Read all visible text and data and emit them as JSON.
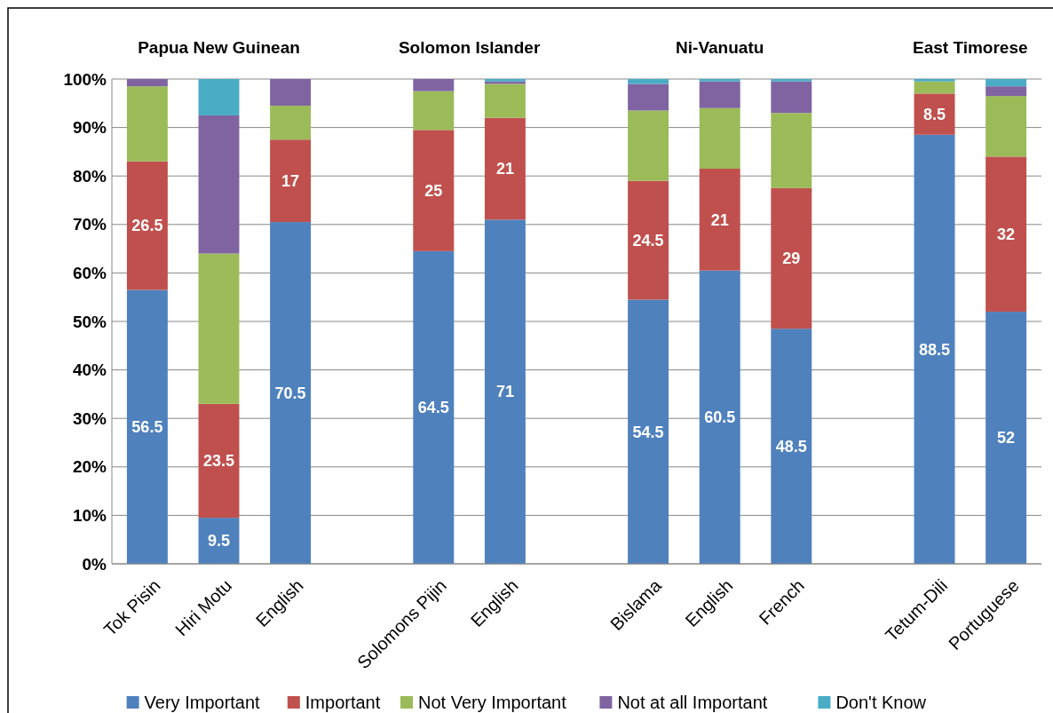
{
  "chart_data": {
    "type": "bar",
    "stacked": true,
    "categories": [
      "Tok Pisin",
      "Hiri Motu",
      "English",
      null,
      "Solomons Pijin",
      "English",
      null,
      "Bislama",
      "English",
      "French",
      null,
      "Tetum-Dili",
      "Portuguese"
    ],
    "series": [
      {
        "name": "Very Important",
        "color": "#4f81bd",
        "values": [
          56.5,
          9.5,
          70.5,
          null,
          64.5,
          71,
          null,
          54.5,
          60.5,
          48.5,
          null,
          88.5,
          52
        ],
        "value_labels": [
          "56.5",
          "9.5",
          "70.5",
          null,
          "64.5",
          "71",
          null,
          "54.5",
          "60.5",
          "48.5",
          null,
          "88.5",
          "52"
        ]
      },
      {
        "name": "Important",
        "color": "#c0504d",
        "values": [
          26.5,
          23.5,
          17,
          null,
          25,
          21,
          null,
          24.5,
          21,
          29,
          null,
          8.5,
          32
        ],
        "value_labels": [
          "26.5",
          "23.5",
          "17",
          null,
          "25",
          "21",
          null,
          "24.5",
          "21",
          "29",
          null,
          "8.5",
          "32"
        ]
      },
      {
        "name": "Not Very Important",
        "color": "#9bbb59",
        "values": [
          15.5,
          31,
          7,
          null,
          8,
          7,
          null,
          14.5,
          12.5,
          15.5,
          null,
          2.5,
          12.5
        ]
      },
      {
        "name": "Not at all Important",
        "color": "#8064a2",
        "values": [
          1.5,
          28.5,
          5.5,
          null,
          2.5,
          0.5,
          null,
          5.5,
          5.5,
          6.5,
          null,
          0,
          2
        ]
      },
      {
        "name": "Don't Know",
        "color": "#4bacc6",
        "values": [
          0,
          7.5,
          0,
          null,
          0,
          0.5,
          null,
          1,
          0.5,
          0.5,
          null,
          0.5,
          1.5
        ]
      }
    ],
    "annotations": [
      "Papua New Guinean",
      "Solomon Islander",
      "Ni-Vanuatu",
      "East Timorese"
    ],
    "ylim": [
      0,
      100
    ],
    "yticks": [
      {
        "value": 0,
        "label": "0%"
      },
      {
        "value": 10,
        "label": "10%"
      },
      {
        "value": 20,
        "label": "20%"
      },
      {
        "value": 30,
        "label": "30%"
      },
      {
        "value": 40,
        "label": "40%"
      },
      {
        "value": 50,
        "label": "50%"
      },
      {
        "value": 60,
        "label": "60%"
      },
      {
        "value": 70,
        "label": "70%"
      },
      {
        "value": 80,
        "label": "80%"
      },
      {
        "value": 90,
        "label": "90%"
      },
      {
        "value": 100,
        "label": "100%"
      }
    ],
    "grid": "y",
    "legend": "bottom"
  }
}
